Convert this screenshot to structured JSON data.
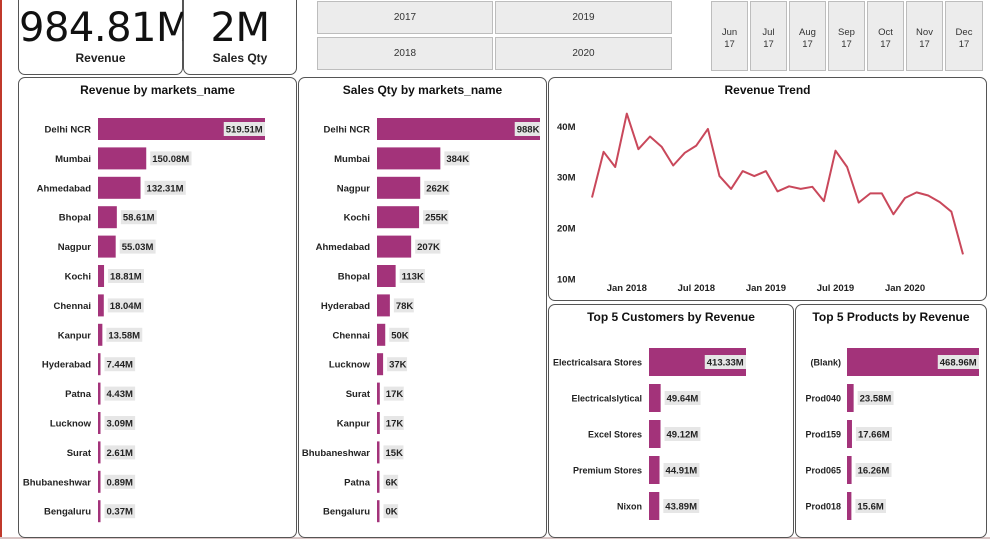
{
  "kpis": {
    "revenue": {
      "value": "984.81M",
      "label": "Revenue"
    },
    "sales_qty": {
      "value": "2M",
      "label": "Sales Qty"
    }
  },
  "year_slicer": {
    "options": [
      "2017",
      "2019",
      "2018",
      "2020"
    ]
  },
  "month_slicer": {
    "options": [
      {
        "m": "Jun",
        "y": "17"
      },
      {
        "m": "Jul",
        "y": "17"
      },
      {
        "m": "Aug",
        "y": "17"
      },
      {
        "m": "Sep",
        "y": "17"
      },
      {
        "m": "Oct",
        "y": "17"
      },
      {
        "m": "Nov",
        "y": "17"
      },
      {
        "m": "Dec",
        "y": "17"
      }
    ]
  },
  "colors": {
    "bar": "#a3337a",
    "line": "#c9485b",
    "label_bg": "#e6e6e6",
    "frame": "#c0392b"
  },
  "chart_data": [
    {
      "id": "revenue_by_market",
      "type": "bar",
      "orientation": "horizontal",
      "title": "Revenue by markets_name",
      "categories": [
        "Delhi NCR",
        "Mumbai",
        "Ahmedabad",
        "Bhopal",
        "Nagpur",
        "Kochi",
        "Chennai",
        "Kanpur",
        "Hyderabad",
        "Patna",
        "Lucknow",
        "Surat",
        "Bhubaneshwar",
        "Bengaluru"
      ],
      "values": [
        519.51,
        150.08,
        132.31,
        58.61,
        55.03,
        18.81,
        18.04,
        13.58,
        7.44,
        4.43,
        3.09,
        2.61,
        0.89,
        0.37
      ],
      "labels": [
        "519.51M",
        "150.08M",
        "132.31M",
        "58.61M",
        "55.03M",
        "18.81M",
        "18.04M",
        "13.58M",
        "7.44M",
        "4.43M",
        "3.09M",
        "2.61M",
        "0.89M",
        "0.37M"
      ],
      "unit": "M"
    },
    {
      "id": "sales_qty_by_market",
      "type": "bar",
      "orientation": "horizontal",
      "title": "Sales Qty by markets_name",
      "categories": [
        "Delhi NCR",
        "Mumbai",
        "Nagpur",
        "Kochi",
        "Ahmedabad",
        "Bhopal",
        "Hyderabad",
        "Chennai",
        "Lucknow",
        "Surat",
        "Kanpur",
        "Bhubaneshwar",
        "Patna",
        "Bengaluru"
      ],
      "values": [
        988,
        384,
        262,
        255,
        207,
        113,
        78,
        50,
        37,
        17,
        17,
        15,
        6,
        0
      ],
      "labels": [
        "988K",
        "384K",
        "262K",
        "255K",
        "207K",
        "113K",
        "78K",
        "50K",
        "37K",
        "17K",
        "17K",
        "15K",
        "6K",
        "0K"
      ],
      "unit": "K"
    },
    {
      "id": "revenue_trend",
      "type": "line",
      "title": "Revenue Trend",
      "x": [
        "2017-10",
        "2017-11",
        "2017-12",
        "2018-01",
        "2018-02",
        "2018-03",
        "2018-04",
        "2018-05",
        "2018-06",
        "2018-07",
        "2018-08",
        "2018-09",
        "2018-10",
        "2018-11",
        "2018-12",
        "2019-01",
        "2019-02",
        "2019-03",
        "2019-04",
        "2019-05",
        "2019-06",
        "2019-07",
        "2019-08",
        "2019-09",
        "2019-10",
        "2019-11",
        "2019-12",
        "2020-01",
        "2020-02",
        "2020-03",
        "2020-04",
        "2020-05",
        "2020-06"
      ],
      "values": [
        26,
        35,
        32,
        42.5,
        35.5,
        38,
        36,
        32.3,
        34.8,
        36.2,
        39.5,
        30.2,
        27.7,
        31.2,
        30.2,
        31.2,
        27.2,
        28.2,
        27.7,
        28.1,
        25.3,
        35.2,
        32,
        25,
        26.8,
        26.8,
        22.7,
        25.9,
        27,
        26.4,
        25.1,
        23.2,
        14.8
      ],
      "y_ticks": [
        "10M",
        "20M",
        "30M",
        "40M"
      ],
      "x_ticks": [
        "Jan 2018",
        "Jul 2018",
        "Jan 2019",
        "Jul 2019",
        "Jan 2020"
      ],
      "ylim": [
        8,
        44
      ],
      "unit": "M"
    },
    {
      "id": "top_customers",
      "type": "bar",
      "orientation": "horizontal",
      "title": "Top 5 Customers by Revenue",
      "categories": [
        "Electricalsara Stores",
        "Electricalslytical",
        "Excel Stores",
        "Premium Stores",
        "Nixon"
      ],
      "values": [
        413.33,
        49.64,
        49.12,
        44.91,
        43.89
      ],
      "labels": [
        "413.33M",
        "49.64M",
        "49.12M",
        "44.91M",
        "43.89M"
      ],
      "unit": "M"
    },
    {
      "id": "top_products",
      "type": "bar",
      "orientation": "horizontal",
      "title": "Top 5 Products by Revenue",
      "categories": [
        "(Blank)",
        "Prod040",
        "Prod159",
        "Prod065",
        "Prod018"
      ],
      "values": [
        468.96,
        23.58,
        17.66,
        16.26,
        15.6
      ],
      "labels": [
        "468.96M",
        "23.58M",
        "17.66M",
        "16.26M",
        "15.6M"
      ],
      "unit": "M"
    }
  ]
}
